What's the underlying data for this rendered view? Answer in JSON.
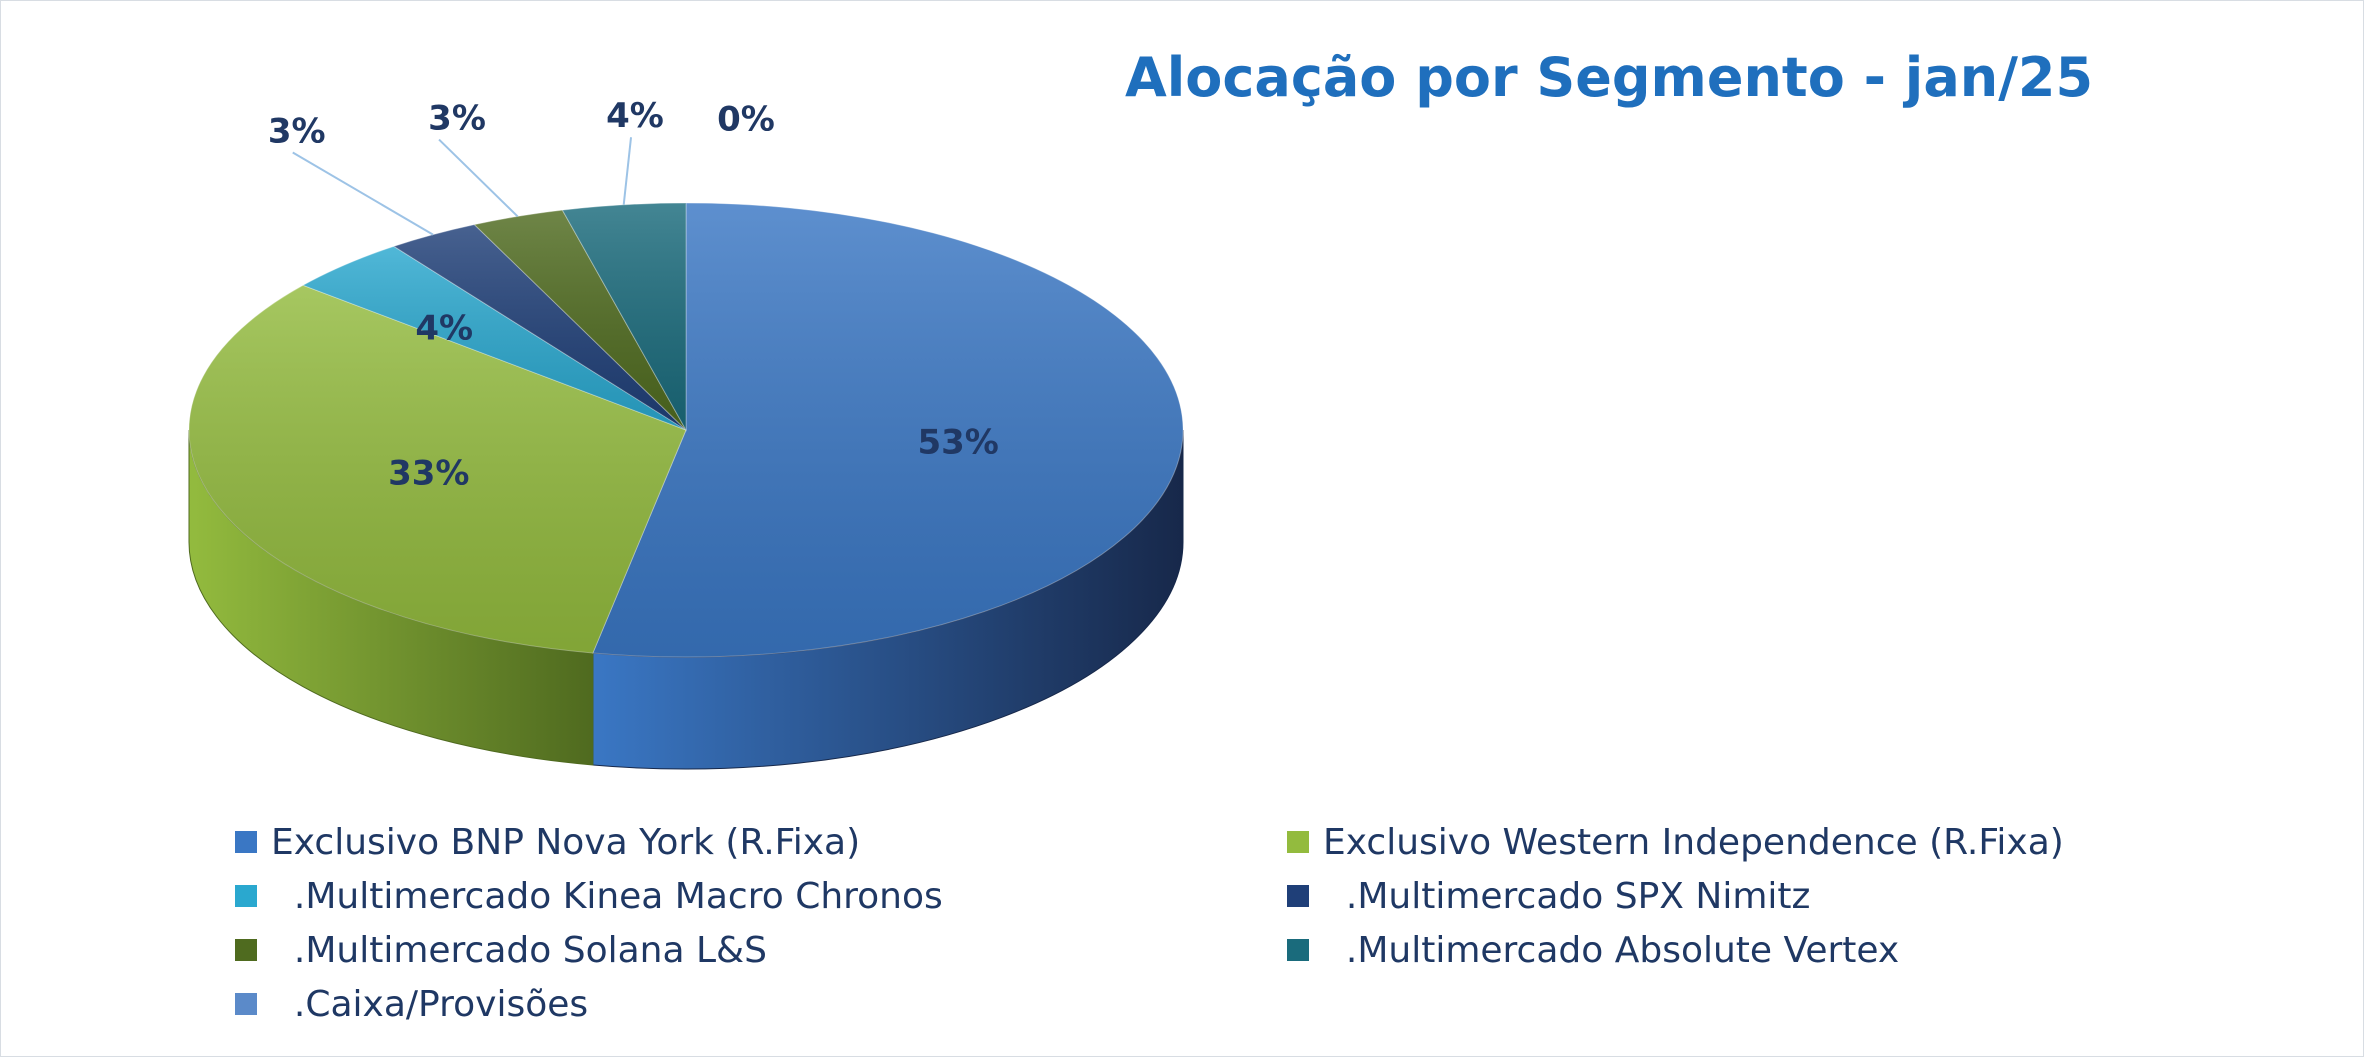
{
  "chart_data": {
    "type": "pie",
    "title": "Alocação por Segmento - jan/25",
    "style": "3d",
    "legend_position": "bottom",
    "slices": [
      {
        "name": "Exclusivo BNP Nova York (R.Fixa)",
        "value": 53,
        "label": "53%",
        "color": "#3a77c4",
        "dark": "#17284a"
      },
      {
        "name": "Exclusivo Western Independence (R.Fixa)",
        "value": 33,
        "label": "33%",
        "color": "#93bb3e",
        "dark": "#4f6a1f"
      },
      {
        "name": "  .Multimercado Kinea Macro Chronos",
        "value": 4,
        "label": "4%",
        "color": "#2aa8cf",
        "dark": "#15627a"
      },
      {
        "name": "  .Multimercado SPX Nimitz",
        "value": 3,
        "label": "3%",
        "color": "#1f3f78",
        "dark": "#101f3c"
      },
      {
        "name": "  .Multimercado Solana L&S",
        "value": 3,
        "label": "3%",
        "color": "#4f6b1f",
        "dark": "#2c3c10"
      },
      {
        "name": "  .Multimercado Absolute Vertex",
        "value": 4,
        "label": "4%",
        "color": "#1a6b7c",
        "dark": "#0d3a44"
      },
      {
        "name": "  .Caixa/Provisões",
        "value": 0,
        "label": "0%",
        "color": "#5b8ac9",
        "dark": "#2e4d7a"
      }
    ]
  }
}
